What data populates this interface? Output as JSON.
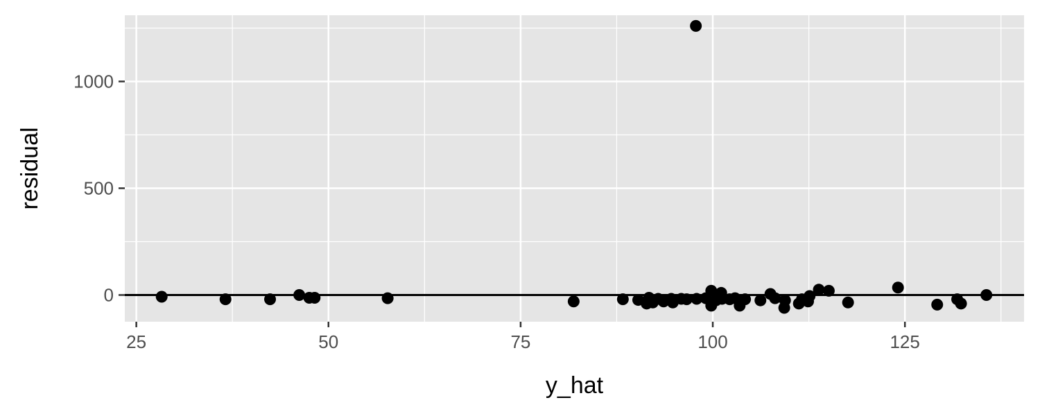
{
  "chart_data": {
    "type": "scatter",
    "title": "",
    "xlabel": "y_hat",
    "ylabel": "residual",
    "xlim": [
      23.5,
      140.5
    ],
    "ylim": [
      -125,
      1310
    ],
    "x_ticks": [
      25,
      50,
      75,
      100,
      125
    ],
    "x_tick_labels": [
      "25",
      "50",
      "75",
      "100",
      "125"
    ],
    "y_ticks": [
      0,
      500,
      1000
    ],
    "y_tick_labels": [
      "0",
      "500",
      "1000"
    ],
    "reference_line_y": 0,
    "grid": true,
    "legend": "none",
    "colors": {
      "panel": "#e5e5e5",
      "grid": "#ffffff",
      "points": "#000000",
      "reference_line": "#000000"
    },
    "points": [
      {
        "x": 28.3,
        "y": -8
      },
      {
        "x": 36.6,
        "y": -20
      },
      {
        "x": 42.4,
        "y": -20
      },
      {
        "x": 46.2,
        "y": 0
      },
      {
        "x": 47.5,
        "y": -13
      },
      {
        "x": 48.2,
        "y": -13
      },
      {
        "x": 57.7,
        "y": -15
      },
      {
        "x": 81.9,
        "y": -30
      },
      {
        "x": 88.3,
        "y": -20
      },
      {
        "x": 90.3,
        "y": -23
      },
      {
        "x": 91.4,
        "y": -40
      },
      {
        "x": 91.7,
        "y": -13
      },
      {
        "x": 92.2,
        "y": -35
      },
      {
        "x": 92.9,
        "y": -18
      },
      {
        "x": 93.6,
        "y": -30
      },
      {
        "x": 94.6,
        "y": -18
      },
      {
        "x": 94.8,
        "y": -35
      },
      {
        "x": 95.9,
        "y": -18
      },
      {
        "x": 96.6,
        "y": -20
      },
      {
        "x": 97.8,
        "y": 1260
      },
      {
        "x": 97.9,
        "y": -18
      },
      {
        "x": 99.1,
        "y": -15
      },
      {
        "x": 99.8,
        "y": 20
      },
      {
        "x": 99.8,
        "y": -50
      },
      {
        "x": 100.4,
        "y": -25
      },
      {
        "x": 101.1,
        "y": 10
      },
      {
        "x": 101.2,
        "y": -18
      },
      {
        "x": 102.2,
        "y": -20
      },
      {
        "x": 102.9,
        "y": -15
      },
      {
        "x": 103.5,
        "y": -50
      },
      {
        "x": 104.2,
        "y": -20
      },
      {
        "x": 106.2,
        "y": -25
      },
      {
        "x": 107.5,
        "y": 5
      },
      {
        "x": 108.1,
        "y": -15
      },
      {
        "x": 109.3,
        "y": -60
      },
      {
        "x": 109.4,
        "y": -25
      },
      {
        "x": 111.2,
        "y": -40
      },
      {
        "x": 111.6,
        "y": -20
      },
      {
        "x": 112.4,
        "y": -30
      },
      {
        "x": 112.6,
        "y": -5
      },
      {
        "x": 113.8,
        "y": 25
      },
      {
        "x": 115.1,
        "y": 20
      },
      {
        "x": 117.6,
        "y": -35
      },
      {
        "x": 124.1,
        "y": 35
      },
      {
        "x": 129.2,
        "y": -45
      },
      {
        "x": 131.8,
        "y": -20
      },
      {
        "x": 132.3,
        "y": -40
      },
      {
        "x": 135.6,
        "y": 0
      }
    ]
  }
}
